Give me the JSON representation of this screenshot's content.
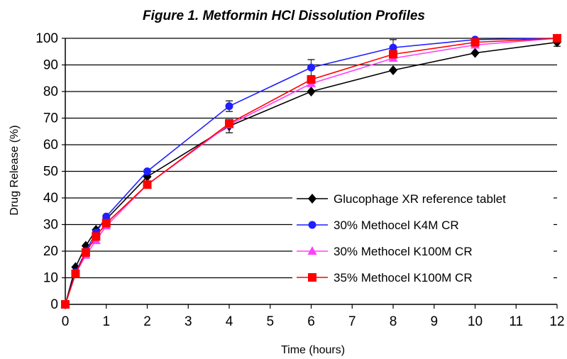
{
  "chart_data": {
    "type": "line",
    "title": "Figure 1. Metformin HCl Dissolution Profiles",
    "xlabel": "Time (hours)",
    "ylabel": "Drug Release (%)",
    "xlim": [
      0,
      12
    ],
    "ylim": [
      0,
      100
    ],
    "xticks": [
      0,
      1,
      2,
      3,
      4,
      5,
      6,
      7,
      8,
      9,
      10,
      11,
      12
    ],
    "yticks": [
      0,
      10,
      20,
      30,
      40,
      50,
      60,
      70,
      80,
      90,
      100
    ],
    "grid": "horizontal",
    "legend_position": "center-right",
    "x": [
      0,
      0.25,
      0.5,
      0.75,
      1,
      2,
      4,
      6,
      8,
      10,
      12
    ],
    "series": [
      {
        "name": "Glucophage XR reference tablet",
        "marker": "diamond",
        "color": "#000000",
        "values": [
          0,
          14,
          22,
          28,
          32,
          48,
          67,
          80,
          88,
          94.5,
          98.5
        ],
        "errors": [
          0,
          0,
          0,
          0,
          0,
          0,
          2.5,
          0,
          0,
          0,
          1.5
        ]
      },
      {
        "name": "30% Methocel K4M CR",
        "marker": "circle",
        "color": "#1f1fff",
        "values": [
          0,
          12,
          20,
          27,
          33,
          50,
          74.5,
          89,
          96.5,
          99.5,
          100
        ],
        "errors": [
          0,
          0,
          0,
          0,
          0,
          0,
          2,
          3,
          3,
          0,
          0
        ]
      },
      {
        "name": "30% Methocel K100M CR",
        "marker": "triangle",
        "color": "#ff40ff",
        "values": [
          0,
          11.5,
          18.5,
          24,
          29.5,
          45,
          67.5,
          83,
          92.5,
          97.5,
          100
        ],
        "errors": [
          0,
          0,
          0,
          0,
          0,
          0,
          0,
          0,
          0,
          0,
          0
        ]
      },
      {
        "name": "35% Methocel K100M CR",
        "marker": "square",
        "color": "#ff0000",
        "values": [
          0,
          11.5,
          19.5,
          25.5,
          30.5,
          45,
          68,
          84.5,
          94,
          98.5,
          100
        ],
        "errors": [
          0,
          0,
          0,
          0,
          0,
          0,
          0,
          0,
          0,
          0,
          0
        ]
      }
    ]
  }
}
